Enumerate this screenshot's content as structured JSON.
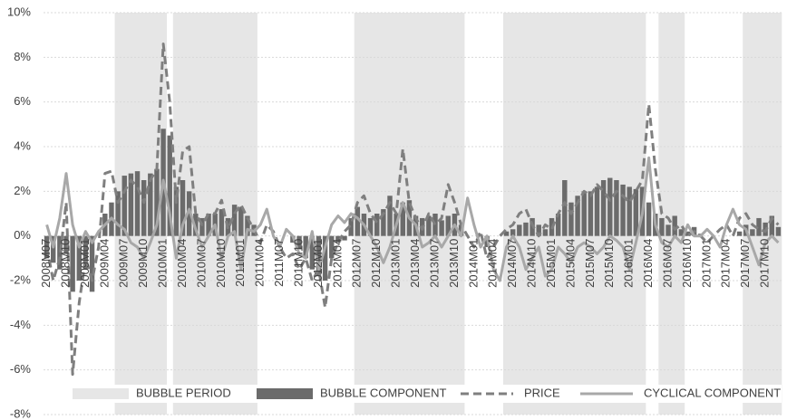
{
  "chart_data": {
    "type": "combo",
    "categories": [
      "2008M07",
      null,
      null,
      "2008M10",
      null,
      null,
      "2009M01",
      null,
      null,
      "2009M04",
      null,
      null,
      "2009M07",
      null,
      null,
      "2009M10",
      null,
      null,
      "2010M01",
      null,
      null,
      "2010M04",
      null,
      null,
      "2010M07",
      null,
      null,
      "2010M10",
      null,
      null,
      "2011M01",
      null,
      null,
      "2011M04",
      null,
      null,
      "2011M07",
      null,
      null,
      "2011M10",
      null,
      null,
      "2012M01",
      null,
      null,
      "2012M04",
      null,
      null,
      "2012M07",
      null,
      null,
      "2012M10",
      null,
      null,
      "2013M01",
      null,
      null,
      "2013M04",
      null,
      null,
      "2013M07",
      null,
      null,
      "2013M10",
      null,
      null,
      "2014M01",
      null,
      null,
      "2014M04",
      null,
      null,
      "2014M07",
      null,
      null,
      "2014M10",
      null,
      null,
      "2015M01",
      null,
      null,
      "2015M04",
      null,
      null,
      "2015M07",
      null,
      null,
      "2015M10",
      null,
      null,
      "2016M01",
      null,
      null,
      "2016M04",
      null,
      null,
      "2016M07",
      null,
      null,
      "2016M10",
      null,
      null,
      "2017M01",
      null,
      null,
      "2017M04",
      null,
      null,
      "2017M07",
      null,
      null,
      "2017M10",
      null,
      null
    ],
    "series": [
      {
        "name": "BUBBLE PERIOD",
        "type": "band",
        "color": "#e6e6e6",
        "values": [
          false,
          false,
          false,
          false,
          false,
          false,
          false,
          false,
          false,
          false,
          false,
          true,
          true,
          true,
          true,
          true,
          true,
          true,
          true,
          false,
          true,
          true,
          true,
          true,
          true,
          true,
          true,
          true,
          true,
          true,
          true,
          true,
          true,
          false,
          false,
          false,
          false,
          false,
          false,
          false,
          false,
          false,
          false,
          false,
          false,
          false,
          false,
          false,
          true,
          true,
          true,
          true,
          true,
          true,
          true,
          true,
          true,
          true,
          true,
          true,
          true,
          true,
          true,
          true,
          true,
          false,
          false,
          false,
          false,
          false,
          false,
          true,
          true,
          true,
          true,
          true,
          true,
          true,
          true,
          true,
          true,
          true,
          true,
          true,
          true,
          true,
          true,
          true,
          true,
          true,
          true,
          true,
          true,
          false,
          false,
          true,
          true,
          true,
          true,
          false,
          false,
          false,
          false,
          false,
          false,
          false,
          false,
          false,
          true,
          true,
          true,
          true,
          true,
          true
        ]
      },
      {
        "name": "BUBBLE COMPONENT",
        "type": "bar",
        "color": "#6b6b6b",
        "values": [
          -1.0,
          -1.2,
          -1.5,
          -0.8,
          -2.5,
          -2.0,
          -1.5,
          -2.5,
          0,
          1.0,
          1.5,
          2.0,
          2.7,
          2.8,
          2.9,
          2.5,
          2.8,
          3.0,
          4.8,
          4.5,
          2.2,
          2.5,
          2.0,
          1.0,
          0.8,
          1.0,
          1.0,
          1.2,
          0.8,
          1.4,
          1.3,
          0.9,
          0.5,
          0,
          0,
          0,
          0,
          0,
          -0.3,
          -0.6,
          -1.0,
          -1.5,
          -1.8,
          -2.0,
          -1.0,
          -0.3,
          -0.2,
          0.8,
          1.3,
          1.0,
          0.8,
          1.0,
          1.2,
          1.8,
          1.0,
          1.5,
          1.6,
          0.9,
          0.8,
          0.9,
          1.0,
          0.7,
          0.9,
          1.0,
          0.5,
          0,
          0,
          0,
          -0.5,
          0,
          0,
          0.2,
          0.3,
          0.5,
          0.6,
          0.8,
          0.5,
          0.3,
          0.8,
          1.0,
          2.5,
          1.5,
          1.8,
          2.0,
          2.0,
          2.2,
          2.5,
          2.6,
          2.5,
          2.3,
          2.2,
          2.1,
          2.2,
          1.5,
          1.0,
          0.8,
          0.5,
          0.9,
          0.3,
          0.2,
          0.4,
          0.1,
          0,
          0,
          0,
          0,
          0,
          0.2,
          0.5,
          0.3,
          0.8,
          0.6,
          0.9,
          0.4
        ]
      },
      {
        "name": "PRICE",
        "type": "line",
        "color": "#7f7f7f",
        "dashed": true,
        "values": [
          -0.5,
          -2.0,
          -1.0,
          1.5,
          -6.2,
          -3.0,
          -1.0,
          -2.0,
          -0.5,
          2.8,
          2.9,
          1.5,
          2.0,
          2.5,
          2.2,
          1.5,
          2.5,
          3.0,
          8.6,
          6.0,
          1.5,
          3.8,
          4.0,
          1.0,
          0.5,
          1.0,
          1.0,
          1.6,
          0.3,
          1.0,
          1.4,
          0.8,
          0.3,
          -0.3,
          0.5,
          0.2,
          -0.5,
          -1.0,
          -0.8,
          -1.5,
          -1.0,
          -2.0,
          -1.5,
          -3.2,
          -1.0,
          -0.3,
          0.2,
          0.5,
          1.5,
          1.8,
          1.0,
          0.6,
          1.0,
          1.5,
          1.0,
          3.9,
          1.5,
          0.8,
          0.3,
          1.0,
          0.5,
          0.8,
          2.3,
          1.5,
          0.5,
          0,
          -0.5,
          0.2,
          -1.0,
          -0.5,
          0,
          0.3,
          0.5,
          1.0,
          1.2,
          0.5,
          0,
          0.5,
          0.3,
          1.0,
          1.5,
          1.0,
          1.5,
          2.0,
          1.8,
          2.3,
          2.0,
          1.6,
          2.0,
          1.8,
          1.5,
          2.0,
          2.5,
          5.9,
          3.0,
          1.0,
          0.8,
          0.3,
          0.5,
          0,
          0.2,
          0,
          -0.3,
          0,
          0.3,
          0.5,
          0,
          0.8,
          1.0,
          0.5,
          0.3,
          0.2,
          0.8,
          0.5
        ]
      },
      {
        "name": "CYCLICAL COMPONENT",
        "type": "line",
        "color": "#a8a8a8",
        "dashed": false,
        "values": [
          0.5,
          -0.5,
          0.8,
          2.8,
          0.5,
          -0.5,
          0.2,
          -0.3,
          0.2,
          0.5,
          0.8,
          0.5,
          0.3,
          -0.3,
          -0.5,
          -1.0,
          -0.3,
          0.5,
          2.5,
          1.0,
          -1.0,
          0.5,
          1.2,
          0.3,
          -0.5,
          0,
          0.5,
          -1.0,
          0,
          0.2,
          -1.5,
          0.3,
          0.2,
          0.5,
          1.2,
          0,
          -0.5,
          0.3,
          0,
          -0.8,
          -1.0,
          0.2,
          -1.5,
          -0.5,
          0.5,
          0.9,
          0.6,
          1.0,
          0.8,
          0.5,
          0,
          -0.5,
          -1.2,
          -0.5,
          0.5,
          1.5,
          0.8,
          0.5,
          -0.5,
          -0.3,
          0,
          -0.5,
          0,
          0.5,
          0,
          1.7,
          0.5,
          -0.5,
          0,
          -1.5,
          -2.0,
          -0.5,
          0,
          -0.5,
          -1.5,
          -1.0,
          -0.5,
          -1.8,
          -1.5,
          -0.5,
          -0.8,
          -1.2,
          -0.5,
          -0.3,
          -0.5,
          -0.8,
          -0.5,
          0,
          -0.2,
          -0.5,
          -1.5,
          -0.3,
          1.0,
          3.5,
          0.5,
          -0.3,
          -0.5,
          0,
          -0.3,
          0.5,
          0,
          0,
          0.3,
          0,
          -0.5,
          0.5,
          1.2,
          0.5,
          0.3,
          -0.5,
          -1.3,
          -0.3,
          0,
          -0.3
        ]
      }
    ],
    "ylim": [
      -8,
      10
    ],
    "yticks": [
      {
        "value": -8,
        "label": "-8%"
      },
      {
        "value": -6,
        "label": "-6%"
      },
      {
        "value": -4,
        "label": "-4%"
      },
      {
        "value": -2,
        "label": "-2%"
      },
      {
        "value": 0,
        "label": "0%"
      },
      {
        "value": 2,
        "label": "2%"
      },
      {
        "value": 4,
        "label": "4%"
      },
      {
        "value": 6,
        "label": "6%"
      },
      {
        "value": 8,
        "label": "8%"
      },
      {
        "value": 10,
        "label": "10%"
      }
    ],
    "grid": true,
    "legend": "bottom"
  }
}
